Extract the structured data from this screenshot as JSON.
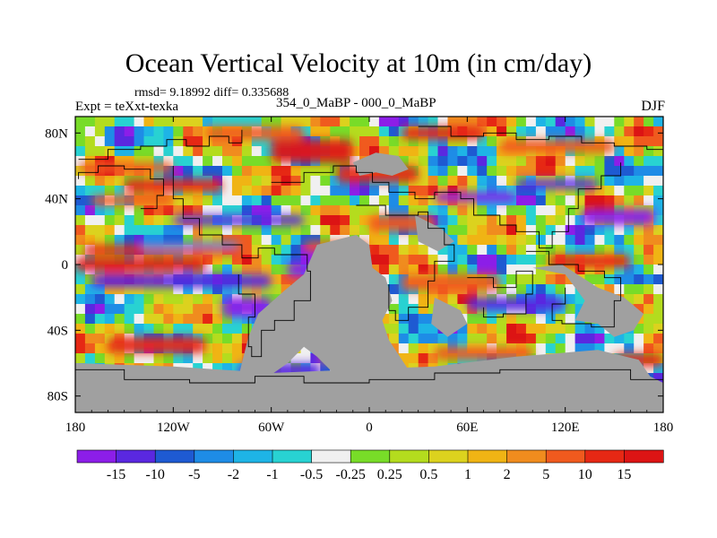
{
  "chart_data": {
    "type": "heatmap",
    "title": "Ocean Vertical Velocity at 10m (in cm/day)",
    "stats_text": "rmsd= 9.18992 diff= 0.335688",
    "experiment_label": "Expt = teXxt-texka",
    "period_label": "354_0_MaBP - 000_0_MaBP",
    "season_label": "DJF",
    "projection": "cylindrical equidistant",
    "x_range": [
      -180,
      180
    ],
    "y_range": [
      -90,
      90
    ],
    "x_ticks": [
      {
        "value": -180,
        "label": "180"
      },
      {
        "value": -120,
        "label": "120W"
      },
      {
        "value": -60,
        "label": "60W"
      },
      {
        "value": 0,
        "label": "0"
      },
      {
        "value": 60,
        "label": "60E"
      },
      {
        "value": 120,
        "label": "120E"
      },
      {
        "value": 180,
        "label": "180"
      }
    ],
    "y_ticks": [
      {
        "value": 80,
        "label": "80N"
      },
      {
        "value": 40,
        "label": "40N"
      },
      {
        "value": 0,
        "label": "0"
      },
      {
        "value": -40,
        "label": "40S"
      },
      {
        "value": -80,
        "label": "80S"
      }
    ],
    "land_color": "#a0a0a0",
    "colorbar": {
      "boundaries": [
        "-15",
        "-10",
        "-5",
        "-2",
        "-1",
        "-0.5",
        "-0.25",
        "0.25",
        "0.5",
        "1",
        "2",
        "5",
        "10",
        "15"
      ],
      "colors": [
        "#8c1ee8",
        "#5a28e0",
        "#1e5ad2",
        "#1e8ce6",
        "#1eb4e6",
        "#28d2d2",
        "#f0f0f0",
        "#78dc28",
        "#b4dc1e",
        "#dcd21e",
        "#f0b414",
        "#f08c1e",
        "#f05a1e",
        "#e62814",
        "#dc1414"
      ]
    }
  }
}
